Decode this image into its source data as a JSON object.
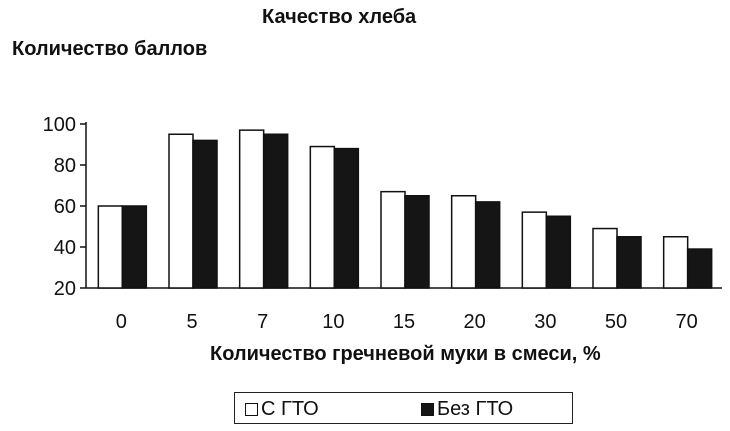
{
  "chart_data": {
    "type": "bar",
    "title": "Качество хлеба",
    "ylabel": "Количество баллов",
    "xlabel": "Количество гречневой муки в смеси, %",
    "categories": [
      "0",
      "5",
      "7",
      "10",
      "15",
      "20",
      "30",
      "50",
      "70"
    ],
    "series": [
      {
        "name": "С ГТО",
        "color": "#ffffff",
        "values": [
          60,
          95,
          97,
          89,
          67,
          65,
          57,
          49,
          45
        ]
      },
      {
        "name": "Без ГТО",
        "color": "#151515",
        "values": [
          60,
          92,
          95,
          88,
          65,
          62,
          55,
          45,
          39
        ]
      }
    ],
    "ylim": [
      20,
      100
    ],
    "yticks": [
      20,
      40,
      60,
      80,
      100
    ],
    "grid": false,
    "legend_position": "bottom"
  }
}
